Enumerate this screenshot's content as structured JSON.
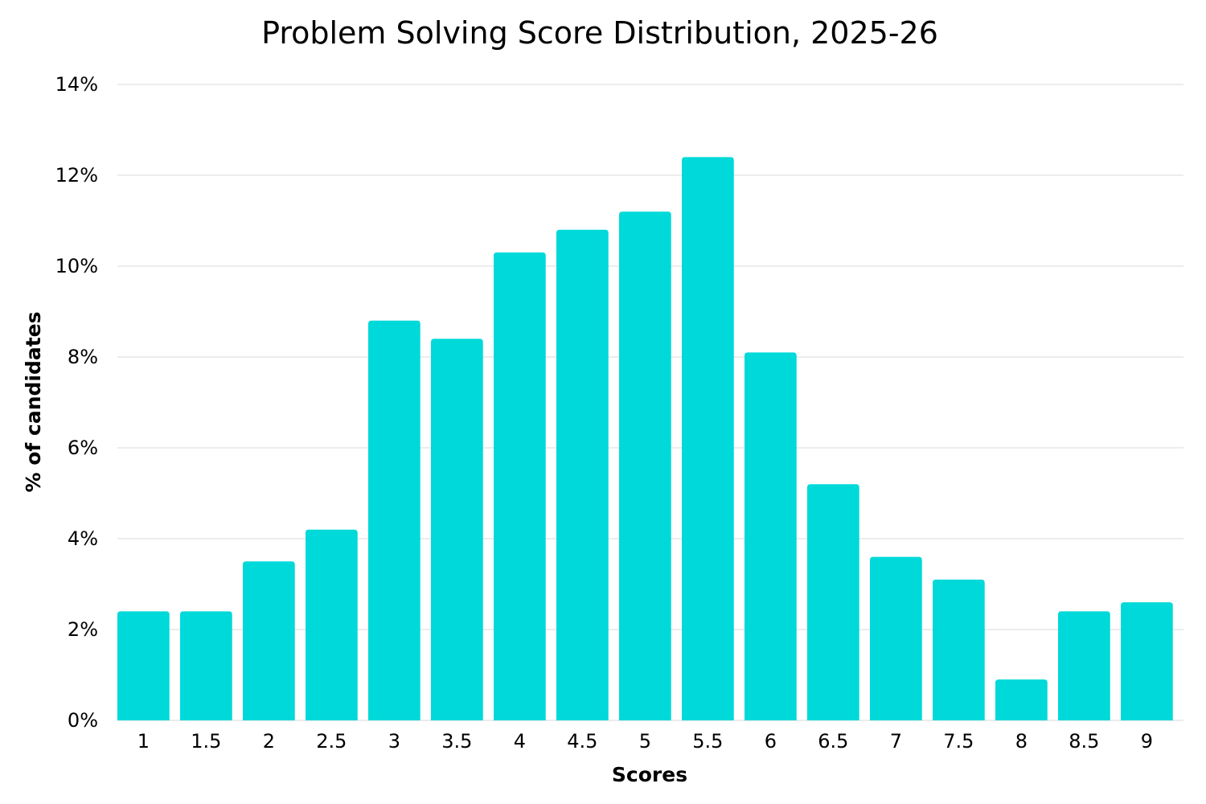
{
  "chart_data": {
    "type": "bar",
    "title": "Problem Solving Score Distribution, 2025-26",
    "xlabel": "Scores",
    "ylabel": "% of candidates",
    "categories": [
      "1",
      "1.5",
      "2",
      "2.5",
      "3",
      "3.5",
      "4",
      "4.5",
      "5",
      "5.5",
      "6",
      "6.5",
      "7",
      "7.5",
      "8",
      "8.5",
      "9"
    ],
    "values": [
      2.4,
      2.4,
      3.5,
      4.2,
      8.8,
      8.4,
      10.3,
      10.8,
      11.2,
      12.4,
      8.1,
      5.2,
      3.6,
      3.1,
      0.9,
      2.4,
      2.6
    ],
    "ylim": [
      0,
      14
    ],
    "yticks": [
      0,
      2,
      4,
      6,
      8,
      10,
      12,
      14
    ],
    "ytick_suffix": "%",
    "grid": true,
    "legend": "none",
    "bar_color": "#00d9d9"
  }
}
